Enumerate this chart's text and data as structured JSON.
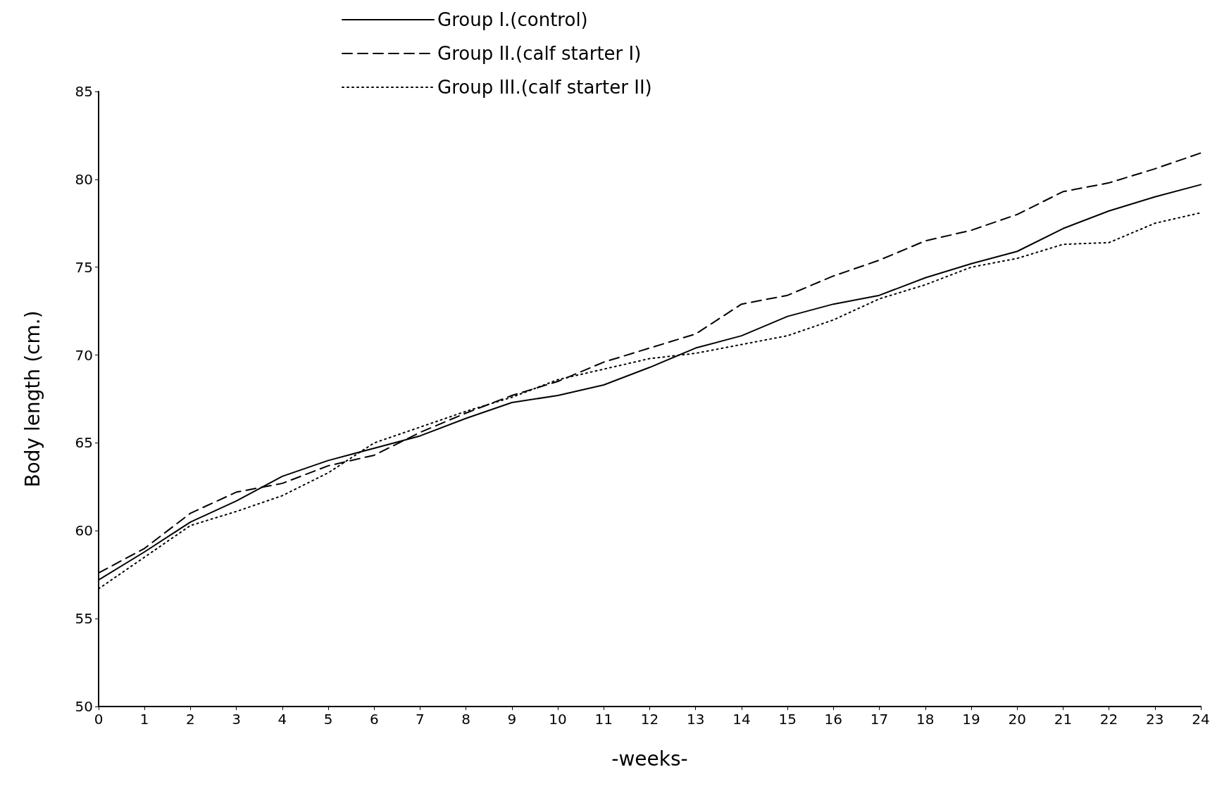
{
  "chart_data": {
    "type": "line",
    "xlabel": "-weeks-",
    "ylabel": "Body length (cm.)",
    "x": [
      0,
      1,
      2,
      3,
      4,
      5,
      6,
      7,
      8,
      9,
      10,
      11,
      12,
      13,
      14,
      15,
      16,
      17,
      18,
      19,
      20,
      21,
      22,
      23,
      24
    ],
    "xlim": [
      0,
      24
    ],
    "xticks": [
      0,
      1,
      2,
      3,
      4,
      5,
      6,
      7,
      8,
      9,
      10,
      11,
      12,
      13,
      14,
      15,
      16,
      17,
      18,
      19,
      20,
      21,
      22,
      23,
      24
    ],
    "ylim": [
      50,
      85
    ],
    "yticks": [
      50,
      55,
      60,
      65,
      70,
      75,
      80,
      85
    ],
    "grid": false,
    "legend": "top",
    "marker": "none",
    "series": [
      {
        "name": "Group I.(control)",
        "color": "#000000",
        "line_style": "solid",
        "values": [
          57.2,
          58.8,
          60.5,
          61.7,
          63.1,
          64.0,
          64.7,
          65.4,
          66.4,
          67.3,
          67.7,
          68.3,
          69.3,
          70.4,
          71.1,
          72.2,
          72.9,
          73.4,
          74.4,
          75.2,
          75.9,
          77.2,
          78.2,
          79.0,
          79.7
        ]
      },
      {
        "name": "Group II.(calf starter I)",
        "color": "#000000",
        "line_style": "dashed",
        "values": [
          57.6,
          59.0,
          61.0,
          62.2,
          62.7,
          63.7,
          64.3,
          65.6,
          66.7,
          67.7,
          68.5,
          69.6,
          70.4,
          71.2,
          72.9,
          73.4,
          74.5,
          75.4,
          76.5,
          77.1,
          78.0,
          79.3,
          79.8,
          80.6,
          81.5
        ]
      },
      {
        "name": "Group III.(calf starter II)",
        "color": "#000000",
        "line_style": "dotted",
        "values": [
          56.7,
          58.5,
          60.3,
          61.1,
          62.0,
          63.3,
          65.0,
          65.9,
          66.8,
          67.6,
          68.6,
          69.2,
          69.8,
          70.1,
          70.6,
          71.1,
          72.0,
          73.2,
          74.0,
          75.0,
          75.5,
          76.3,
          76.4,
          77.5,
          78.1
        ]
      }
    ]
  }
}
